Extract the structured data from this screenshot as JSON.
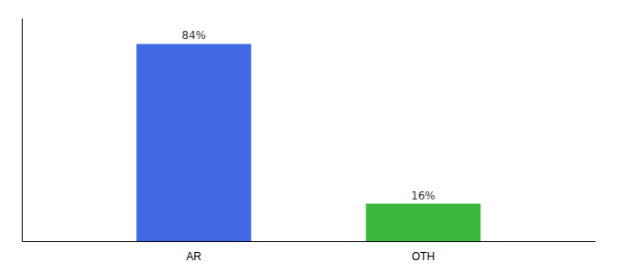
{
  "chart_data": {
    "type": "bar",
    "categories": [
      "AR",
      "OTH"
    ],
    "values": [
      84,
      16
    ],
    "value_labels": [
      "84%",
      "16%"
    ],
    "colors": [
      "#4169e1",
      "#3cb83c"
    ],
    "ylim": [
      0,
      95
    ],
    "yticks": [],
    "tick_labels": "x",
    "data_labels": true
  }
}
